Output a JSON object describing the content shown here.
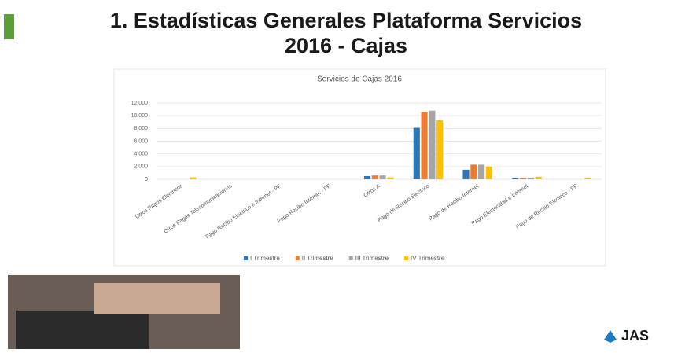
{
  "slide_title_line1": "1. Estadísticas Generales Plataforma Servicios",
  "slide_title_line2": "2016 - Cajas",
  "logo": "JAS",
  "chart_data": {
    "type": "bar",
    "title": "Servicios de Cajas 2016",
    "categories": [
      "Otros Pagos Electricos",
      "Otros Pagos Telecomunicaciones",
      "Pago Recibo Electrico e Internet - PF",
      "Pago Recibo Internet - PF",
      "Otros A",
      "Pago de Recibo Electrico",
      "Pago de Recibo Internet",
      "Pago Electricidad e Internet",
      "Pago de Recibo Electrico - PF"
    ],
    "series": [
      {
        "name": "I Trimestre",
        "color": "#2e75b6",
        "values": [
          0,
          0,
          0,
          0,
          500,
          8100,
          1500,
          200,
          0
        ]
      },
      {
        "name": "II Trimestre",
        "color": "#ed7d31",
        "values": [
          0,
          0,
          0,
          0,
          600,
          10600,
          2300,
          200,
          0
        ]
      },
      {
        "name": "III Trimestre",
        "color": "#a5a5a5",
        "values": [
          0,
          0,
          0,
          0,
          600,
          10800,
          2300,
          200,
          0
        ]
      },
      {
        "name": "IV Trimestre",
        "color": "#ffc000",
        "values": [
          300,
          0,
          0,
          0,
          300,
          9300,
          2000,
          400,
          200
        ]
      }
    ],
    "ylim": [
      0,
      12000
    ],
    "yticks": [
      0,
      {
        "value": 2000,
        "label": "2.000"
      },
      {
        "value": 4000,
        "label": "4.000"
      },
      {
        "value": 6000,
        "label": "6.000"
      },
      {
        "value": 8000,
        "label": "8.000"
      },
      {
        "value": 10000,
        "label": "10.000"
      },
      {
        "value": 12000,
        "label": "12.000"
      }
    ],
    "grid": true
  }
}
